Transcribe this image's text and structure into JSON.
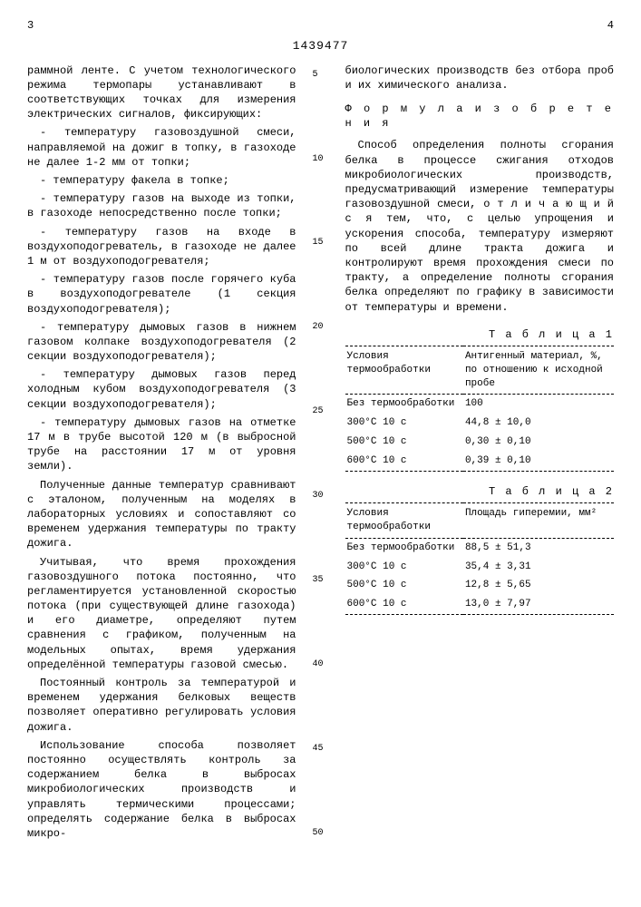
{
  "docnum": "1439477",
  "pagenum_left": "3",
  "pagenum_right": "4",
  "left": {
    "p1": "раммной ленте. С учетом технологического режима термопары устанавливают в соответствующих точках для измерения электрических сигналов, фиксирующих:",
    "b1": "- температуру газовоздушной смеси, направляемой на дожиг в топку, в газоходе не далее 1-2 мм от топки;",
    "b2": "- температуру факела в топке;",
    "b3": "- температуру газов на выходе из топки, в газоходе непосредственно после топки;",
    "b4": "- температуру газов на входе в воздухоподогреватель, в газоходе не далее 1 м от воздухоподогревателя;",
    "b5": "- температуру газов после горячего куба в воздухоподогревателе (1 секция воздухоподогревателя);",
    "b6": "- температуру дымовых газов в нижнем газовом колпаке воздухоподогревателя (2 секции воздухоподогревателя);",
    "b7": "- температуру дымовых газов перед холодным кубом воздухоподогревателя (3 секции воздухоподогревателя);",
    "b8": "- температуру дымовых газов на отметке 17 м в трубе высотой 120 м (в выбросной трубе на расстоянии 17 м от уровня земли).",
    "p2": "Полученные данные температур сравнивают с эталоном, полученным на моделях в лабораторных условиях и сопоставляют со временем удержания температуры по тракту дожига.",
    "p3": "Учитывая, что время прохождения газовоздушного потока постоянно, что регламентируется установленной скоростью потока (при существующей длине газохода) и его диаметре, определяют путем сравнения с графиком, полученным на модельных опытах, время удержания определённой температуры газовой смесью.",
    "p4": "Постоянный контроль за температурой и временем удержания белковых веществ позволяет оперативно регулировать условия дожига.",
    "p5": "Использование способа позволяет постоянно осуществлять контроль за содержанием белка в выбросах микробиологических производств и управлять термическими процессами; определять содержание белка в выбросах микро-"
  },
  "right": {
    "p1": "биологических производств без отбора проб и их химического анализа.",
    "formula_title": "Ф о р м у л а   и з о б р е т е н и я",
    "p2": "Способ определения полноты сгорания белка в процессе сжигания отходов микробиологических производств, предусматривающий измерение температуры газовоздушной смеси, о т л и ч а ю щ и й с я  тем, что, с целью упрощения и ускорения способа, температуру измеряют по всей длине тракта дожига и контролируют время прохождения смеси по тракту, а определение полноты сгорания белка определяют по графику в зависимости от температуры и времени."
  },
  "table1": {
    "title": "Т а б л и ц а  1",
    "head_c1": "Условия термообработки",
    "head_c2": "Антигенный материал, %, по отношению к исходной пробе",
    "rows": [
      {
        "c1": "Без термообработки",
        "c2": "100"
      },
      {
        "c1": "300°С  10 с",
        "c2": "44,8 ± 10,0"
      },
      {
        "c1": "500°С  10 с",
        "c2": "0,30 ± 0,10"
      },
      {
        "c1": "600°С  10 с",
        "c2": "0,39 ± 0,10"
      }
    ]
  },
  "table2": {
    "title": "Т а б л и ц а  2",
    "head_c1": "Условия термообработки",
    "head_c2": "Площадь гиперемии, мм²",
    "rows": [
      {
        "c1": "Без термообработки",
        "c2": "88,5 ± 51,3"
      },
      {
        "c1": "300°С  10 с",
        "c2": "35,4 ± 3,31"
      },
      {
        "c1": "500°С  10 с",
        "c2": "12,8 ± 5,65"
      },
      {
        "c1": "600°С  10 с",
        "c2": "13,0 ± 7,97"
      }
    ]
  },
  "linemarks": [
    "5",
    "10",
    "15",
    "20",
    "25",
    "30",
    "35",
    "40",
    "45",
    "50"
  ]
}
